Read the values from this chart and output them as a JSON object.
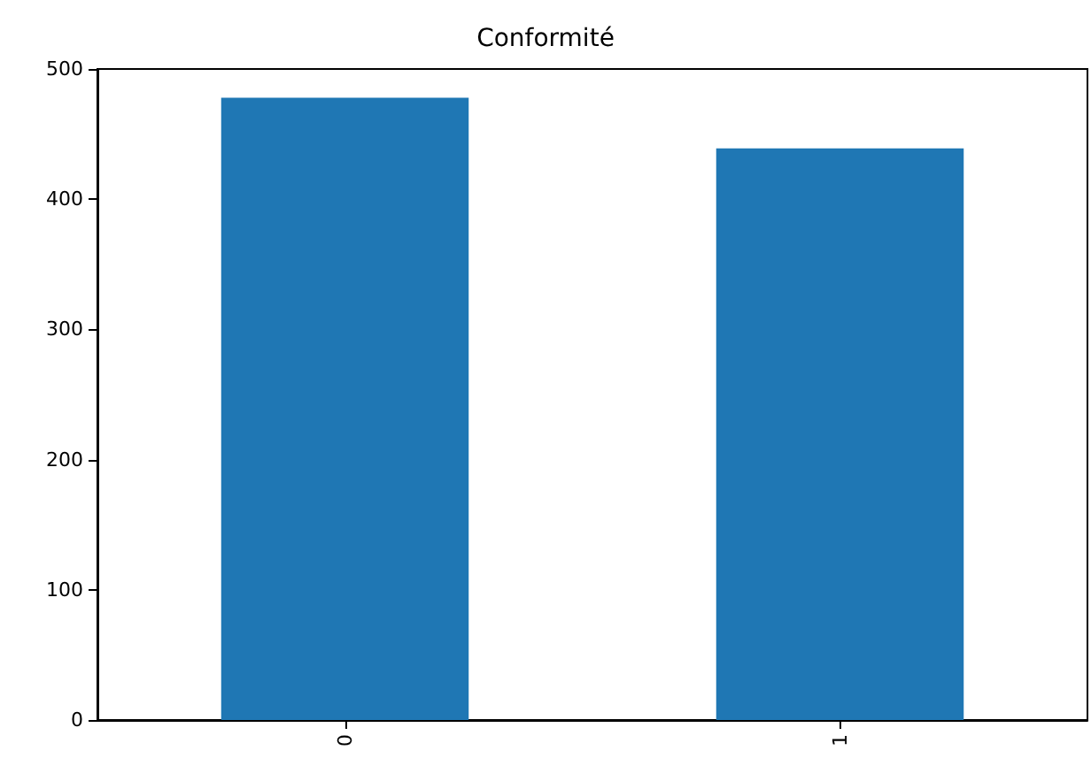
{
  "chart_data": {
    "type": "bar",
    "title": "Conformité",
    "categories": [
      "0",
      "1"
    ],
    "values": [
      478,
      439
    ],
    "color": "#1f77b4",
    "ylim": [
      0,
      500
    ],
    "yticks": [
      0,
      100,
      200,
      300,
      400,
      500
    ],
    "grid": false
  }
}
